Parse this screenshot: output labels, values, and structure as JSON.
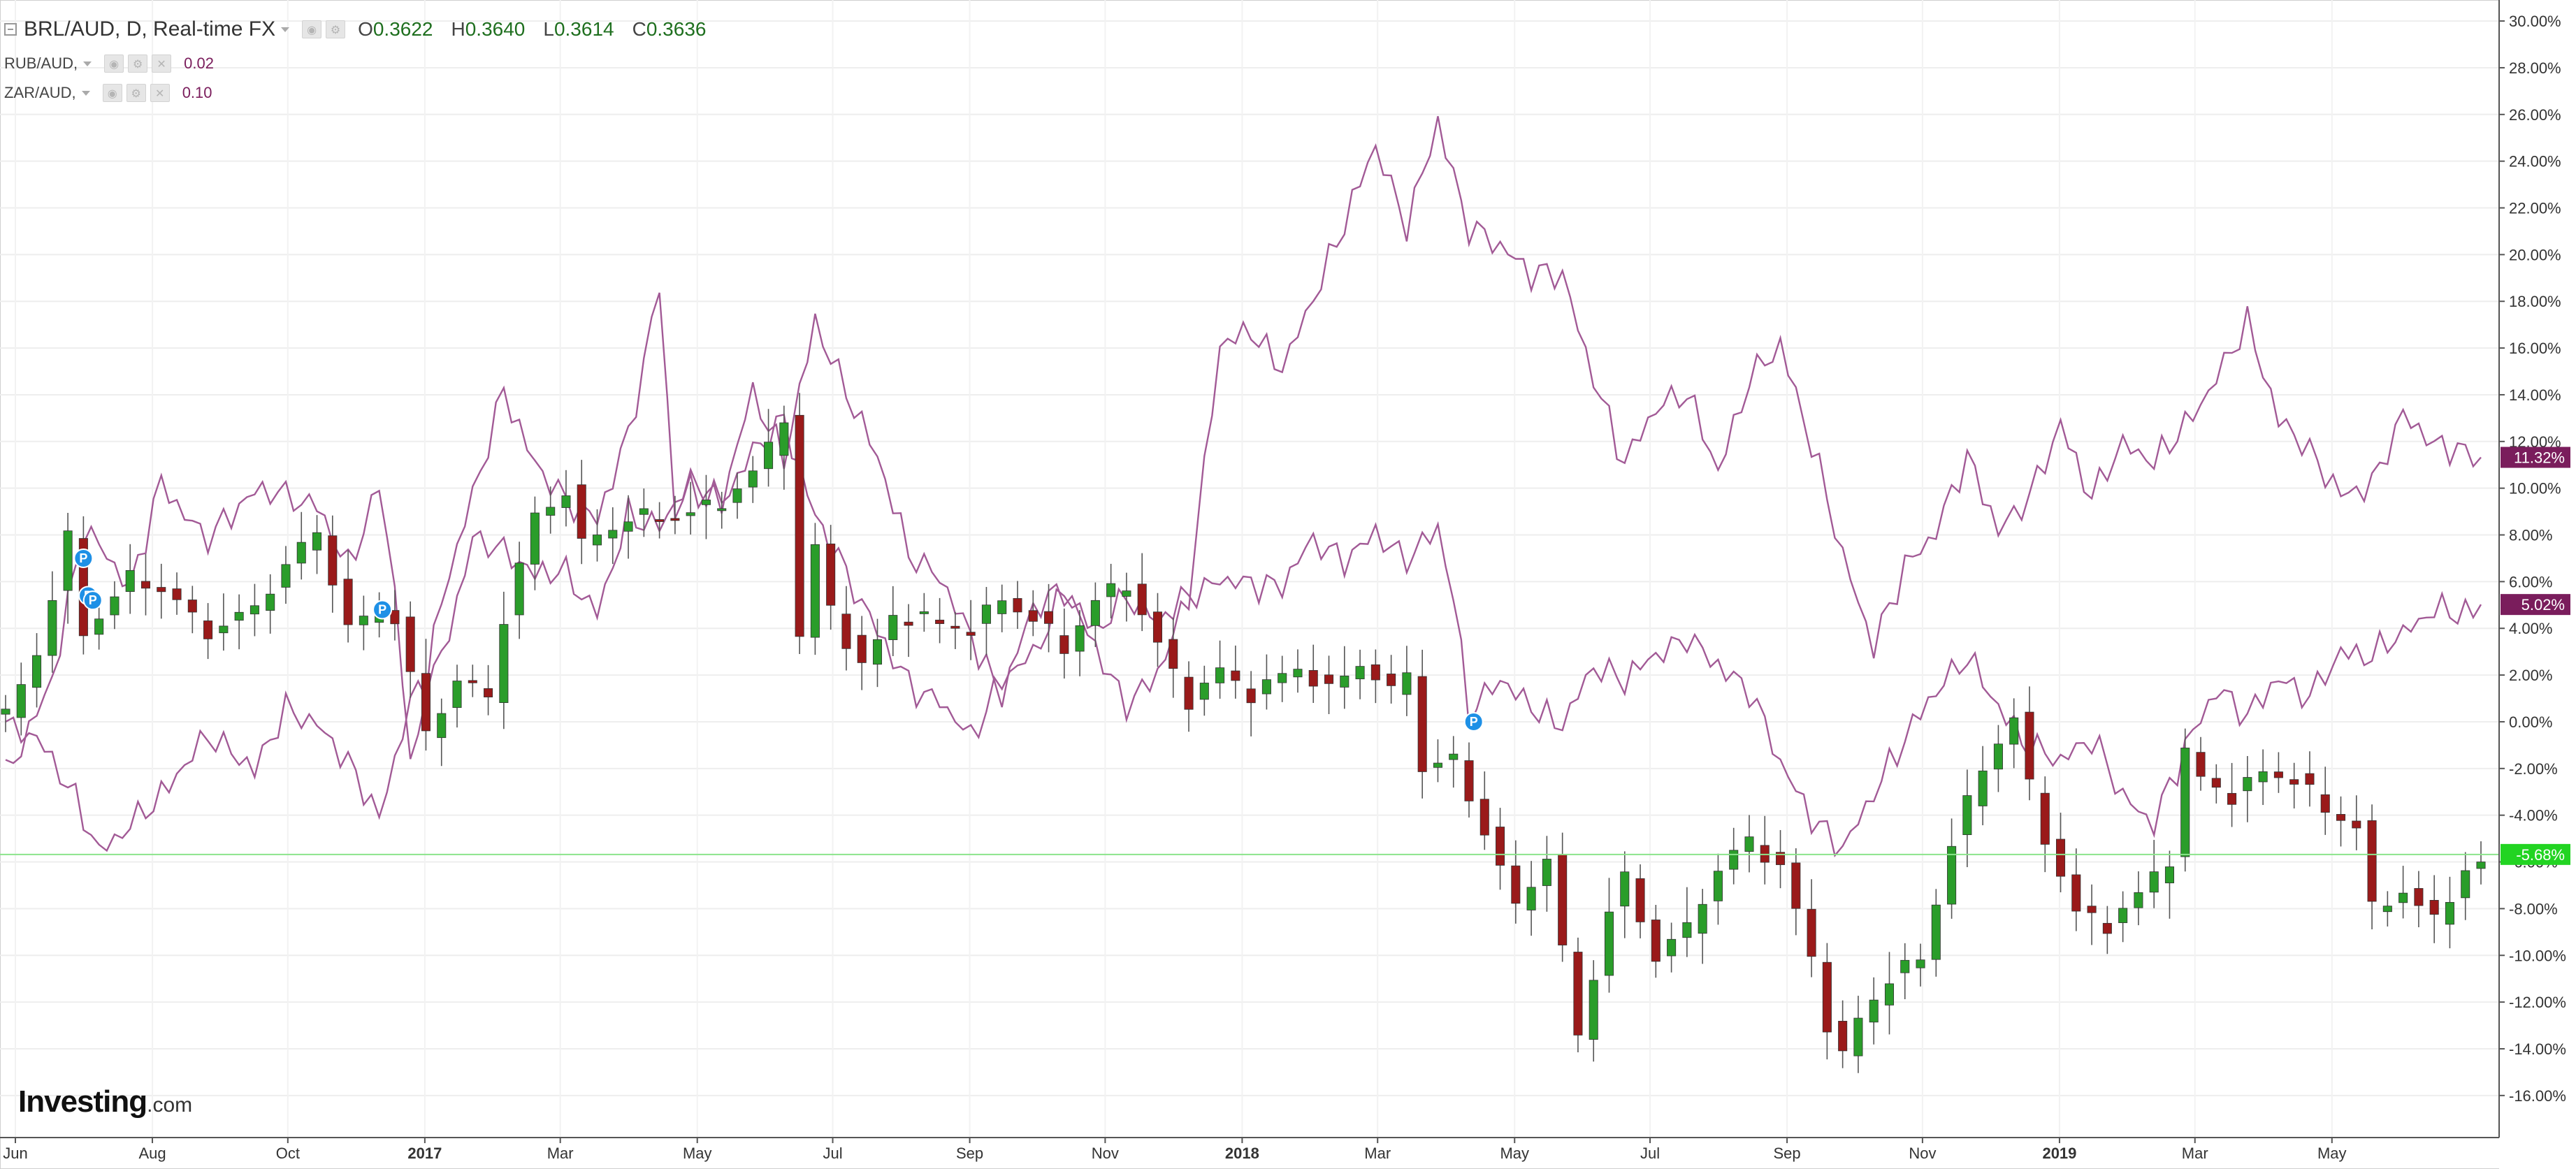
{
  "legend": {
    "main": {
      "label": "BRL/AUD, D, Real-time FX",
      "o_key": "O",
      "o": "0.3622",
      "h_key": "H",
      "h": "0.3640",
      "l_key": "L",
      "l": "0.3614",
      "c_key": "C",
      "c": "0.3636"
    },
    "compare": [
      {
        "label": "RUB/AUD,",
        "value": "0.02",
        "color": "#7a1d5c"
      },
      {
        "label": "ZAR/AUD,",
        "value": "0.10",
        "color": "#7a1d5c"
      }
    ]
  },
  "logo": {
    "text": "Investing",
    "suffix": ".com"
  },
  "chart_data": {
    "type": "line",
    "x_ticks": [
      "Jun",
      "Aug",
      "Oct",
      "2017",
      "Mar",
      "May",
      "Jul",
      "Sep",
      "Nov",
      "2018",
      "Mar",
      "May",
      "Jul",
      "Sep",
      "Nov",
      "2019",
      "Mar",
      "May"
    ],
    "y_ticks": [
      "30.00%",
      "28.00%",
      "26.00%",
      "24.00%",
      "22.00%",
      "20.00%",
      "18.00%",
      "16.00%",
      "14.00%",
      "12.00%",
      "10.00%",
      "8.00%",
      "6.00%",
      "4.00%",
      "2.00%",
      "0.00%",
      "-2.00%",
      "-4.00%",
      "-6.00%",
      "-8.00%",
      "-10.00%",
      "-12.00%",
      "-14.00%",
      "-16.00%"
    ],
    "ylim": [
      -17.8,
      30.9
    ],
    "x_months": [
      "2016-06",
      "2019-05"
    ],
    "series": [
      {
        "name": "BRL/AUD",
        "style": "candlestick",
        "up_color": "#2a9d2a",
        "down_color": "#9a1a1a",
        "last_label": "-5.68%",
        "keyframes": [
          [
            0,
            0
          ],
          [
            2,
            3
          ],
          [
            4,
            8
          ],
          [
            5,
            4
          ],
          [
            8,
            6
          ],
          [
            10,
            5.5
          ],
          [
            13,
            4
          ],
          [
            16,
            5
          ],
          [
            20,
            8
          ],
          [
            22,
            4
          ],
          [
            24,
            5
          ],
          [
            25,
            4.5
          ],
          [
            27,
            -0.5
          ],
          [
            29,
            1.5
          ],
          [
            31,
            1
          ],
          [
            32,
            4.5
          ],
          [
            34,
            9
          ],
          [
            36,
            10
          ],
          [
            37,
            7.5
          ],
          [
            40,
            8.5
          ],
          [
            43,
            9
          ],
          [
            46,
            9.5
          ],
          [
            48,
            10.5
          ],
          [
            49,
            11.5
          ],
          [
            50,
            13
          ],
          [
            51,
            3.5
          ],
          [
            52,
            7.5
          ],
          [
            53,
            5
          ],
          [
            55,
            2.5
          ],
          [
            57,
            4.5
          ],
          [
            60,
            4
          ],
          [
            62,
            4
          ],
          [
            64,
            5.5
          ],
          [
            66,
            4.5
          ],
          [
            68,
            3
          ],
          [
            70,
            5
          ],
          [
            72,
            6
          ],
          [
            74,
            3.5
          ],
          [
            76,
            1
          ],
          [
            78,
            2
          ],
          [
            80,
            1
          ],
          [
            83,
            2.5
          ],
          [
            85,
            1.5
          ],
          [
            87,
            2.5
          ],
          [
            89,
            1
          ],
          [
            90,
            2
          ],
          [
            91,
            -2
          ],
          [
            93,
            -1.5
          ],
          [
            95,
            -4.5
          ],
          [
            97,
            -8
          ],
          [
            99,
            -6
          ],
          [
            100,
            -10
          ],
          [
            101,
            -13.5
          ],
          [
            103,
            -8
          ],
          [
            104,
            -6.5
          ],
          [
            106,
            -10
          ],
          [
            108,
            -9
          ],
          [
            110,
            -6.5
          ],
          [
            112,
            -5
          ],
          [
            114,
            -6
          ],
          [
            116,
            -10
          ],
          [
            117,
            -13
          ],
          [
            118,
            -14.5
          ],
          [
            119,
            -13
          ],
          [
            121,
            -11
          ],
          [
            123,
            -10
          ],
          [
            125,
            -5
          ],
          [
            127,
            -2
          ],
          [
            129,
            0
          ],
          [
            130,
            -3
          ],
          [
            131,
            -5
          ],
          [
            133,
            -8
          ],
          [
            135,
            -8.5
          ],
          [
            137,
            -7.5
          ],
          [
            139,
            -6
          ],
          [
            140,
            -1.5
          ],
          [
            141,
            -2.5
          ],
          [
            143,
            -3
          ],
          [
            145,
            -2
          ],
          [
            147,
            -2.5
          ],
          [
            149,
            -4
          ],
          [
            151,
            -4.5
          ],
          [
            152,
            -8
          ],
          [
            154,
            -7
          ],
          [
            156,
            -8.5
          ],
          [
            158,
            -6.5
          ],
          [
            159,
            -6
          ]
        ]
      },
      {
        "name": "RUB/AUD",
        "color": "#a25a96",
        "last_label": "11.32%",
        "keyframes": [
          [
            0,
            -2
          ],
          [
            3,
            2
          ],
          [
            5,
            8
          ],
          [
            8,
            5.5
          ],
          [
            10,
            10.5
          ],
          [
            13,
            8
          ],
          [
            16,
            9.5
          ],
          [
            20,
            9.5
          ],
          [
            22,
            7
          ],
          [
            24,
            10
          ],
          [
            25,
            5.5
          ],
          [
            26,
            -2.5
          ],
          [
            28,
            5
          ],
          [
            30,
            10
          ],
          [
            32,
            14.5
          ],
          [
            34,
            11
          ],
          [
            36,
            9
          ],
          [
            38,
            8.5
          ],
          [
            40,
            12.5
          ],
          [
            42,
            19
          ],
          [
            43,
            9
          ],
          [
            44,
            10
          ],
          [
            46,
            9
          ],
          [
            48,
            14
          ],
          [
            50,
            11.5
          ],
          [
            52,
            17.5
          ],
          [
            54,
            14
          ],
          [
            56,
            11
          ],
          [
            58,
            7
          ],
          [
            60,
            6.5
          ],
          [
            62,
            4
          ],
          [
            64,
            1
          ],
          [
            66,
            4.5
          ],
          [
            68,
            5.5
          ],
          [
            70,
            3.5
          ],
          [
            72,
            1
          ],
          [
            74,
            2
          ],
          [
            76,
            5
          ],
          [
            78,
            16
          ],
          [
            80,
            17
          ],
          [
            82,
            15.5
          ],
          [
            84,
            18
          ],
          [
            86,
            21
          ],
          [
            88,
            24.5
          ],
          [
            90,
            21.5
          ],
          [
            92,
            26
          ],
          [
            94,
            21
          ],
          [
            96,
            20
          ],
          [
            98,
            19
          ],
          [
            100,
            19.5
          ],
          [
            102,
            15
          ],
          [
            104,
            11
          ],
          [
            106,
            13
          ],
          [
            108,
            14
          ],
          [
            110,
            11
          ],
          [
            112,
            15
          ],
          [
            114,
            16
          ],
          [
            116,
            11.5
          ],
          [
            118,
            7
          ],
          [
            120,
            3.5
          ],
          [
            122,
            7
          ],
          [
            124,
            8
          ],
          [
            126,
            11
          ],
          [
            128,
            8
          ],
          [
            130,
            10
          ],
          [
            132,
            13
          ],
          [
            134,
            9.5
          ],
          [
            136,
            11.5
          ],
          [
            138,
            11
          ],
          [
            140,
            13
          ],
          [
            142,
            15
          ],
          [
            144,
            17
          ],
          [
            146,
            12.5
          ],
          [
            148,
            11.5
          ],
          [
            150,
            10
          ],
          [
            152,
            10.5
          ],
          [
            154,
            13
          ],
          [
            156,
            11.5
          ],
          [
            159,
            11.32
          ]
        ]
      },
      {
        "name": "ZAR/AUD",
        "color": "#a25a96",
        "last_label": "5.02%",
        "keyframes": [
          [
            0,
            0
          ],
          [
            2,
            -1
          ],
          [
            4,
            -3
          ],
          [
            6,
            -5.5
          ],
          [
            8,
            -4
          ],
          [
            10,
            -3
          ],
          [
            13,
            -1
          ],
          [
            16,
            -2
          ],
          [
            18,
            1
          ],
          [
            20,
            0
          ],
          [
            22,
            -2
          ],
          [
            24,
            -4.5
          ],
          [
            26,
            1
          ],
          [
            28,
            3
          ],
          [
            30,
            8
          ],
          [
            32,
            7
          ],
          [
            34,
            6
          ],
          [
            36,
            6.5
          ],
          [
            38,
            5
          ],
          [
            40,
            9
          ],
          [
            42,
            8
          ],
          [
            44,
            10
          ],
          [
            46,
            9.5
          ],
          [
            48,
            12
          ],
          [
            50,
            13
          ],
          [
            52,
            8.5
          ],
          [
            54,
            6
          ],
          [
            56,
            4
          ],
          [
            58,
            2
          ],
          [
            60,
            1
          ],
          [
            62,
            -1
          ],
          [
            64,
            1.5
          ],
          [
            66,
            3
          ],
          [
            68,
            6
          ],
          [
            70,
            4
          ],
          [
            72,
            5
          ],
          [
            74,
            4
          ],
          [
            76,
            5.5
          ],
          [
            78,
            6.5
          ],
          [
            80,
            6
          ],
          [
            82,
            5.5
          ],
          [
            84,
            7.5
          ],
          [
            86,
            7
          ],
          [
            88,
            8.5
          ],
          [
            90,
            7
          ],
          [
            92,
            8
          ],
          [
            93,
            5
          ],
          [
            94,
            0
          ],
          [
            96,
            2
          ],
          [
            98,
            1
          ],
          [
            100,
            0
          ],
          [
            102,
            2
          ],
          [
            104,
            1.5
          ],
          [
            106,
            3
          ],
          [
            108,
            4
          ],
          [
            110,
            2.5
          ],
          [
            112,
            1
          ],
          [
            114,
            -2
          ],
          [
            116,
            -4
          ],
          [
            118,
            -5
          ],
          [
            120,
            -3
          ],
          [
            122,
            -1
          ],
          [
            124,
            1
          ],
          [
            126,
            3
          ],
          [
            128,
            1
          ],
          [
            130,
            -1
          ],
          [
            132,
            -2
          ],
          [
            134,
            -1
          ],
          [
            136,
            -3
          ],
          [
            138,
            -4
          ],
          [
            140,
            -1
          ],
          [
            142,
            1
          ],
          [
            144,
            0
          ],
          [
            146,
            2
          ],
          [
            148,
            1.5
          ],
          [
            150,
            3
          ],
          [
            152,
            2.5
          ],
          [
            154,
            3.5
          ],
          [
            156,
            5
          ],
          [
            159,
            5.02
          ]
        ]
      }
    ],
    "hline": {
      "value": -5.68,
      "color": "#8be48b"
    },
    "markers": [
      {
        "label": "P",
        "idx": 5,
        "value": 7
      },
      {
        "label": "P",
        "idx": 5.3,
        "value": 5.4
      },
      {
        "label": "P",
        "idx": 5.6,
        "value": 5.2
      },
      {
        "label": "P",
        "idx": 24.2,
        "value": 4.8
      },
      {
        "label": "P",
        "idx": 94.3,
        "value": 0
      }
    ]
  }
}
